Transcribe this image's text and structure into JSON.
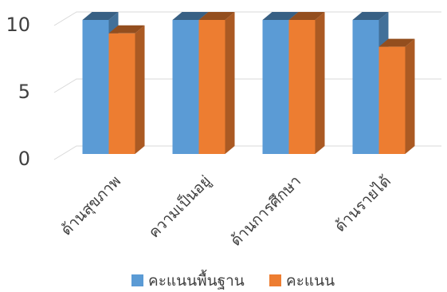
{
  "chart_data": {
    "type": "bar",
    "categories": [
      "ด้านสุขภาพ",
      "ความเป็นอยู่",
      "ด้านการศึกษา",
      "ด้านรายได้"
    ],
    "series": [
      {
        "name": "คะแนนพื้นฐาน",
        "values": [
          10,
          10,
          10,
          10
        ],
        "color": "#5B9BD5"
      },
      {
        "name": "คะแนน",
        "values": [
          9,
          10,
          10,
          8
        ],
        "color": "#ED7D31"
      }
    ],
    "yticks": [
      0,
      5,
      10
    ],
    "ylim": [
      0,
      10
    ],
    "grid": true,
    "legend": "bottom",
    "style": "3d-clustered-column"
  }
}
